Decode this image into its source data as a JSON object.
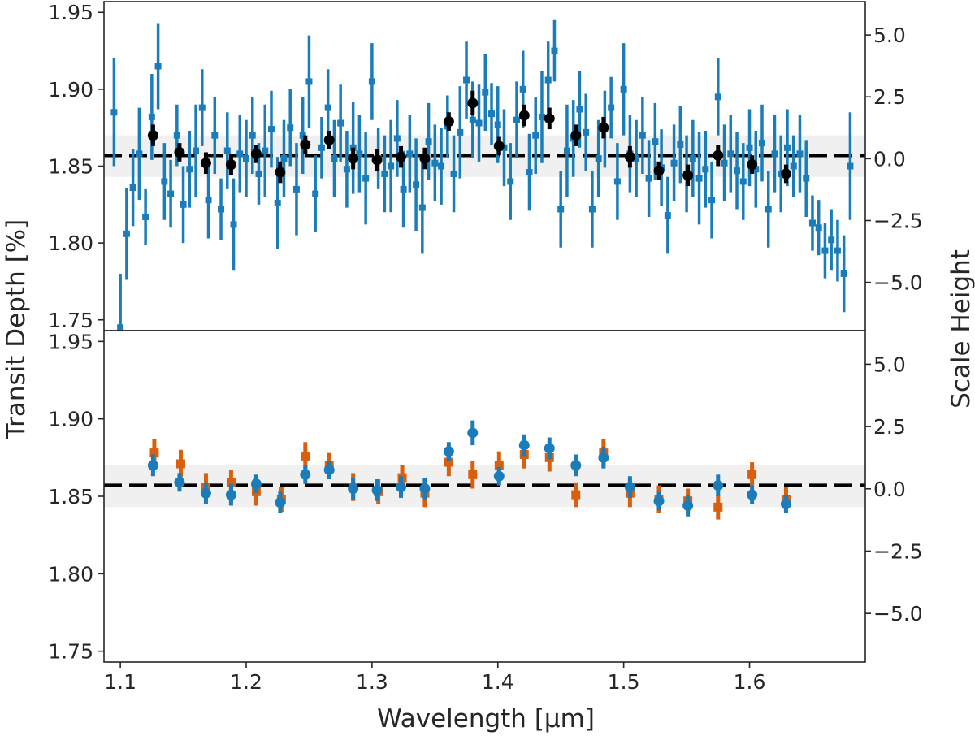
{
  "chart_data": {
    "type": "scatter",
    "xlabel": "Wavelength [µm]",
    "ylabel_left": "Transit Depth [%]",
    "ylabel_right": "Scale Height",
    "xlim": [
      1.087,
      1.692
    ],
    "x_ticks": [
      1.1,
      1.2,
      1.3,
      1.4,
      1.5,
      1.6
    ],
    "x_tick_labels": [
      "1.1",
      "1.2",
      "1.3",
      "1.4",
      "1.5",
      "1.6"
    ],
    "colors": {
      "blue": "#1a7dba",
      "orange": "#d95f0e",
      "black": "#000000",
      "band": "#f0f0f0"
    },
    "panels": [
      {
        "id": "top",
        "ylim": [
          1.743,
          1.957
        ],
        "y_ticks": [
          1.75,
          1.8,
          1.85,
          1.9,
          1.95
        ],
        "y_tick_labels": [
          "1.75",
          "1.80",
          "1.85",
          "1.90",
          "1.95"
        ],
        "y2lim": [
          -6.95,
          6.35
        ],
        "y2_ticks": [
          -5.0,
          -2.5,
          0.0,
          2.5,
          5.0
        ],
        "y2_tick_labels": [
          "−5.0",
          "−2.5",
          "0.0",
          "2.5",
          "5.0"
        ],
        "reference_line": 1.857,
        "band": [
          1.843,
          1.87
        ],
        "series": [
          {
            "marker": "square",
            "color": "#1a7dba",
            "x": [
              1.095,
              1.1,
              1.105,
              1.11,
              1.115,
              1.12,
              1.125,
              1.13,
              1.135,
              1.14,
              1.145,
              1.15,
              1.155,
              1.16,
              1.165,
              1.17,
              1.175,
              1.18,
              1.185,
              1.19,
              1.195,
              1.2,
              1.205,
              1.21,
              1.215,
              1.22,
              1.225,
              1.23,
              1.235,
              1.24,
              1.245,
              1.25,
              1.255,
              1.26,
              1.265,
              1.27,
              1.275,
              1.28,
              1.285,
              1.29,
              1.295,
              1.3,
              1.305,
              1.31,
              1.315,
              1.32,
              1.325,
              1.33,
              1.335,
              1.34,
              1.345,
              1.35,
              1.355,
              1.36,
              1.365,
              1.37,
              1.375,
              1.38,
              1.385,
              1.39,
              1.395,
              1.4,
              1.405,
              1.41,
              1.415,
              1.42,
              1.425,
              1.43,
              1.435,
              1.44,
              1.445,
              1.45,
              1.455,
              1.46,
              1.465,
              1.47,
              1.475,
              1.48,
              1.485,
              1.49,
              1.495,
              1.5,
              1.505,
              1.51,
              1.515,
              1.52,
              1.525,
              1.53,
              1.535,
              1.54,
              1.545,
              1.55,
              1.555,
              1.56,
              1.565,
              1.57,
              1.575,
              1.58,
              1.585,
              1.59,
              1.595,
              1.6,
              1.605,
              1.61,
              1.615,
              1.62,
              1.625,
              1.63,
              1.635,
              1.64,
              1.645,
              1.65,
              1.655,
              1.66,
              1.665,
              1.67,
              1.675,
              1.68
            ],
            "y": [
              1.885,
              1.745,
              1.806,
              1.836,
              1.858,
              1.817,
              1.882,
              1.915,
              1.84,
              1.832,
              1.87,
              1.825,
              1.848,
              1.86,
              1.888,
              1.828,
              1.87,
              1.822,
              1.86,
              1.812,
              1.858,
              1.855,
              1.87,
              1.845,
              1.86,
              1.874,
              1.826,
              1.855,
              1.875,
              1.835,
              1.87,
              1.905,
              1.832,
              1.862,
              1.888,
              1.855,
              1.878,
              1.848,
              1.862,
              1.858,
              1.842,
              1.905,
              1.855,
              1.845,
              1.85,
              1.868,
              1.835,
              1.858,
              1.838,
              1.823,
              1.866,
              1.852,
              1.85,
              1.876,
              1.845,
              1.872,
              1.906,
              1.88,
              1.878,
              1.898,
              1.884,
              1.877,
              1.862,
              1.84,
              1.88,
              1.9,
              1.846,
              1.87,
              1.882,
              1.906,
              1.925,
              1.822,
              1.86,
              1.868,
              1.887,
              1.872,
              1.822,
              1.855,
              1.874,
              1.888,
              1.84,
              1.9,
              1.858,
              1.855,
              1.87,
              1.842,
              1.866,
              1.849,
              1.818,
              1.852,
              1.864,
              1.845,
              1.855,
              1.842,
              1.848,
              1.828,
              1.895,
              1.852,
              1.858,
              1.847,
              1.84,
              1.862,
              1.848,
              1.865,
              1.822,
              1.858,
              1.845,
              1.862,
              1.85,
              1.858,
              1.842,
              1.813,
              1.81,
              1.795,
              1.802,
              1.795,
              1.78,
              1.85
            ],
            "err": [
              0.035,
              0.035,
              0.03,
              0.025,
              0.03,
              0.018,
              0.028,
              0.028,
              0.025,
              0.022,
              0.02,
              0.025,
              0.025,
              0.03,
              0.025,
              0.025,
              0.025,
              0.02,
              0.025,
              0.03,
              0.025,
              0.025,
              0.025,
              0.02,
              0.03,
              0.025,
              0.03,
              0.025,
              0.025,
              0.03,
              0.025,
              0.03,
              0.025,
              0.02,
              0.025,
              0.025,
              0.025,
              0.025,
              0.03,
              0.025,
              0.03,
              0.025,
              0.02,
              0.025,
              0.03,
              0.025,
              0.025,
              0.025,
              0.03,
              0.03,
              0.025,
              0.025,
              0.025,
              0.02,
              0.025,
              0.03,
              0.025,
              0.025,
              0.025,
              0.025,
              0.02,
              0.025,
              0.025,
              0.025,
              0.025,
              0.025,
              0.025,
              0.025,
              0.03,
              0.025,
              0.02,
              0.025,
              0.03,
              0.025,
              0.025,
              0.025,
              0.025,
              0.025,
              0.025,
              0.02,
              0.025,
              0.03,
              0.025,
              0.025,
              0.025,
              0.025,
              0.025,
              0.025,
              0.025,
              0.025,
              0.025,
              0.025,
              0.025,
              0.03,
              0.025,
              0.025,
              0.025,
              0.025,
              0.025,
              0.025,
              0.025,
              0.025,
              0.025,
              0.025,
              0.025,
              0.025,
              0.025,
              0.025,
              0.02,
              0.025,
              0.025,
              0.018,
              0.018,
              0.018,
              0.02,
              0.02,
              0.025,
              0.035
            ]
          },
          {
            "marker": "circle",
            "color": "#000000",
            "x": [
              1.126,
              1.147,
              1.168,
              1.188,
              1.208,
              1.227,
              1.247,
              1.266,
              1.285,
              1.304,
              1.323,
              1.342,
              1.361,
              1.38,
              1.401,
              1.421,
              1.441,
              1.462,
              1.484,
              1.505,
              1.528,
              1.551,
              1.575,
              1.602,
              1.629
            ],
            "y": [
              1.87,
              1.859,
              1.852,
              1.851,
              1.858,
              1.846,
              1.864,
              1.867,
              1.855,
              1.854,
              1.856,
              1.855,
              1.879,
              1.891,
              1.863,
              1.883,
              1.881,
              1.87,
              1.875,
              1.856,
              1.847,
              1.844,
              1.857,
              1.851,
              1.845
            ],
            "err": [
              0.007,
              0.006,
              0.007,
              0.007,
              0.006,
              0.007,
              0.006,
              0.006,
              0.007,
              0.007,
              0.007,
              0.007,
              0.006,
              0.008,
              0.006,
              0.007,
              0.007,
              0.007,
              0.007,
              0.007,
              0.006,
              0.007,
              0.007,
              0.006,
              0.006
            ]
          }
        ]
      },
      {
        "id": "bottom",
        "ylim": [
          1.743,
          1.957
        ],
        "y_ticks": [
          1.75,
          1.8,
          1.85,
          1.9,
          1.95
        ],
        "y_tick_labels": [
          "1.75",
          "1.80",
          "1.85",
          "1.90",
          "1.95"
        ],
        "y2lim": [
          -6.95,
          6.35
        ],
        "y2_ticks": [
          -5.0,
          -2.5,
          0.0,
          2.5,
          5.0
        ],
        "y2_tick_labels": [
          "−5.0",
          "−2.5",
          "0.0",
          "2.5",
          "5.0"
        ],
        "reference_line": 1.857,
        "band": [
          1.843,
          1.87
        ],
        "series": [
          {
            "marker": "square",
            "color": "#d95f0e",
            "x": [
              1.127,
              1.148,
              1.168,
              1.188,
              1.208,
              1.228,
              1.247,
              1.266,
              1.285,
              1.305,
              1.324,
              1.342,
              1.361,
              1.38,
              1.401,
              1.421,
              1.441,
              1.462,
              1.484,
              1.505,
              1.528,
              1.551,
              1.575,
              1.602,
              1.629
            ],
            "y": [
              1.878,
              1.871,
              1.856,
              1.859,
              1.853,
              1.848,
              1.876,
              1.87,
              1.856,
              1.853,
              1.862,
              1.852,
              1.872,
              1.864,
              1.87,
              1.877,
              1.875,
              1.851,
              1.878,
              1.852,
              1.848,
              1.847,
              1.843,
              1.864,
              1.848
            ],
            "err": [
              0.009,
              0.009,
              0.009,
              0.008,
              0.009,
              0.008,
              0.009,
              0.008,
              0.009,
              0.008,
              0.008,
              0.009,
              0.009,
              0.009,
              0.009,
              0.009,
              0.009,
              0.008,
              0.009,
              0.009,
              0.009,
              0.008,
              0.008,
              0.008,
              0.008
            ]
          },
          {
            "marker": "circle",
            "color": "#1a7dba",
            "x": [
              1.126,
              1.147,
              1.168,
              1.188,
              1.208,
              1.227,
              1.247,
              1.266,
              1.285,
              1.304,
              1.323,
              1.342,
              1.361,
              1.38,
              1.401,
              1.421,
              1.441,
              1.462,
              1.484,
              1.505,
              1.528,
              1.551,
              1.575,
              1.602,
              1.629
            ],
            "y": [
              1.87,
              1.859,
              1.852,
              1.851,
              1.858,
              1.846,
              1.864,
              1.867,
              1.855,
              1.854,
              1.856,
              1.855,
              1.879,
              1.891,
              1.863,
              1.883,
              1.881,
              1.87,
              1.875,
              1.856,
              1.847,
              1.844,
              1.857,
              1.851,
              1.845
            ],
            "err": [
              0.007,
              0.006,
              0.007,
              0.007,
              0.006,
              0.007,
              0.006,
              0.006,
              0.007,
              0.007,
              0.007,
              0.007,
              0.006,
              0.008,
              0.006,
              0.007,
              0.007,
              0.007,
              0.007,
              0.007,
              0.006,
              0.007,
              0.007,
              0.006,
              0.006
            ]
          }
        ]
      }
    ]
  }
}
